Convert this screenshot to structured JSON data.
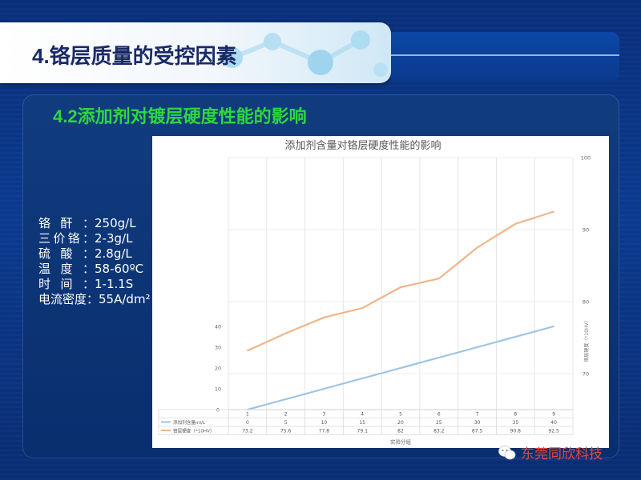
{
  "header": {
    "title": "4.铬层质量的受控因素"
  },
  "section": {
    "title": "4.2添加剂对镀层硬度性能的影响"
  },
  "params": [
    {
      "label": "铬酐：",
      "value": "250g/L"
    },
    {
      "label": "三价铬：",
      "value": "2-3g/L"
    },
    {
      "label": "硫酸：",
      "value": "2.8g/L"
    },
    {
      "label": "温度：",
      "value": "58-60ºC"
    },
    {
      "label": "时间：",
      "value": "1-1.1S"
    },
    {
      "label": "电流密度：",
      "value": "55A/dm²"
    }
  ],
  "watermark": {
    "text": "东莞同欣科技"
  },
  "chart_data": {
    "type": "line",
    "title": "添加剂含量对铬层硬度性能的影响",
    "xlabel": "实验分组",
    "y2label": "铬层硬度（*10HV）",
    "categories": [
      "1",
      "2",
      "3",
      "4",
      "5",
      "6",
      "7",
      "8",
      "9"
    ],
    "series": [
      {
        "name": "添加剂含量ml/L",
        "axis": "left",
        "color": "#9cc3e4",
        "values": [
          0,
          5,
          10,
          15,
          20,
          25,
          30,
          35,
          40
        ]
      },
      {
        "name": "铬层硬度（*10HV）",
        "axis": "right",
        "color": "#f0b58a",
        "values": [
          73.2,
          75.6,
          77.8,
          79.1,
          82,
          83.2,
          87.5,
          90.8,
          92.5
        ]
      }
    ],
    "y_left": {
      "ticks": [
        0,
        10,
        20,
        30,
        40
      ],
      "range": [
        0,
        40
      ]
    },
    "y_right": {
      "ticks": [
        70,
        80,
        90,
        100
      ],
      "range": [
        65,
        100
      ]
    },
    "grid": true,
    "legend": "data-table-below"
  }
}
